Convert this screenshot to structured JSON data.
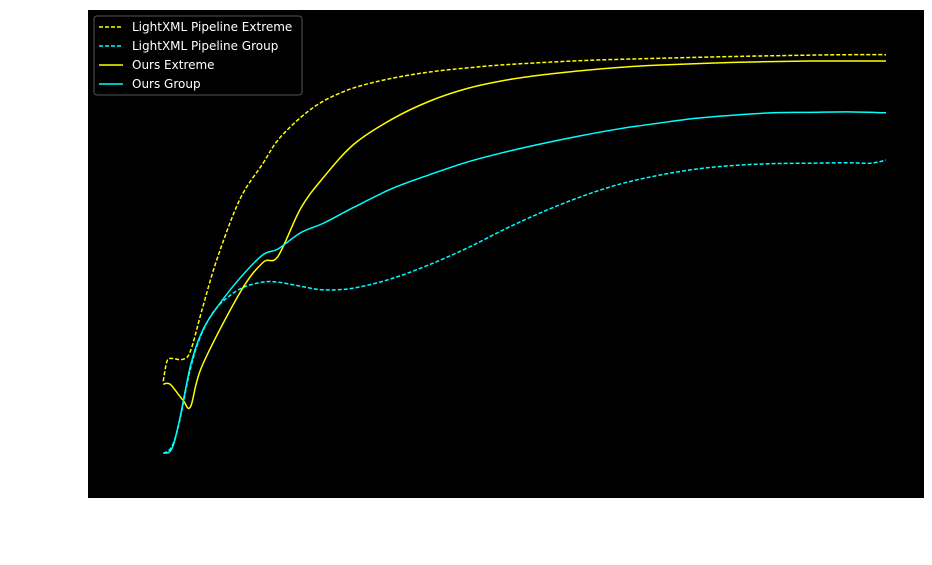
{
  "chart_data": {
    "type": "line",
    "title": "",
    "xlabel": "",
    "ylabel": "",
    "xlim": [
      0,
      1
    ],
    "ylim": [
      0,
      1
    ],
    "grid": false,
    "legend_position": "top-left",
    "background_color": "#000000",
    "series": [
      {
        "name": "LightXML Pipeline Extreme",
        "color": "#ffff00",
        "style": "dashed",
        "points": [
          [
            0.049,
            0.209
          ],
          [
            0.054,
            0.253
          ],
          [
            0.06,
            0.259
          ],
          [
            0.075,
            0.257
          ],
          [
            0.085,
            0.276
          ],
          [
            0.1,
            0.366
          ],
          [
            0.12,
            0.479
          ],
          [
            0.15,
            0.61
          ],
          [
            0.18,
            0.688
          ],
          [
            0.2,
            0.74
          ],
          [
            0.23,
            0.79
          ],
          [
            0.26,
            0.826
          ],
          [
            0.3,
            0.855
          ],
          [
            0.35,
            0.876
          ],
          [
            0.4,
            0.89
          ],
          [
            0.45,
            0.899
          ],
          [
            0.5,
            0.906
          ],
          [
            0.6,
            0.915
          ],
          [
            0.7,
            0.92
          ],
          [
            0.8,
            0.924
          ],
          [
            0.9,
            0.927
          ],
          [
            0.95,
            0.928
          ],
          [
            1.0,
            0.928
          ]
        ]
      },
      {
        "name": "LightXML Pipeline Group",
        "color": "#00ffff",
        "style": "dashed",
        "points": [
          [
            0.049,
            0.05
          ],
          [
            0.06,
            0.064
          ],
          [
            0.07,
            0.117
          ],
          [
            0.085,
            0.238
          ],
          [
            0.1,
            0.315
          ],
          [
            0.12,
            0.372
          ],
          [
            0.15,
            0.412
          ],
          [
            0.18,
            0.427
          ],
          [
            0.2,
            0.427
          ],
          [
            0.23,
            0.418
          ],
          [
            0.26,
            0.41
          ],
          [
            0.3,
            0.414
          ],
          [
            0.35,
            0.435
          ],
          [
            0.4,
            0.466
          ],
          [
            0.45,
            0.503
          ],
          [
            0.5,
            0.545
          ],
          [
            0.55,
            0.583
          ],
          [
            0.6,
            0.616
          ],
          [
            0.65,
            0.643
          ],
          [
            0.7,
            0.662
          ],
          [
            0.75,
            0.676
          ],
          [
            0.8,
            0.684
          ],
          [
            0.85,
            0.688
          ],
          [
            0.9,
            0.689
          ],
          [
            0.95,
            0.69
          ],
          [
            0.98,
            0.689
          ],
          [
            1.0,
            0.696
          ]
        ]
      },
      {
        "name": "Ours Extreme",
        "color": "#ffff00",
        "style": "solid",
        "points": [
          [
            0.049,
            0.202
          ],
          [
            0.054,
            0.204
          ],
          [
            0.06,
            0.199
          ],
          [
            0.075,
            0.167
          ],
          [
            0.085,
            0.153
          ],
          [
            0.1,
            0.242
          ],
          [
            0.15,
            0.404
          ],
          [
            0.18,
            0.47
          ],
          [
            0.2,
            0.484
          ],
          [
            0.23,
            0.59
          ],
          [
            0.26,
            0.658
          ],
          [
            0.3,
            0.731
          ],
          [
            0.35,
            0.786
          ],
          [
            0.4,
            0.826
          ],
          [
            0.45,
            0.854
          ],
          [
            0.5,
            0.872
          ],
          [
            0.55,
            0.884
          ],
          [
            0.6,
            0.893
          ],
          [
            0.65,
            0.9
          ],
          [
            0.7,
            0.905
          ],
          [
            0.8,
            0.911
          ],
          [
            0.9,
            0.914
          ],
          [
            1.0,
            0.914
          ]
        ]
      },
      {
        "name": "Ours Group",
        "color": "#00ffff",
        "style": "solid",
        "points": [
          [
            0.049,
            0.05
          ],
          [
            0.06,
            0.059
          ],
          [
            0.07,
            0.12
          ],
          [
            0.085,
            0.244
          ],
          [
            0.1,
            0.318
          ],
          [
            0.12,
            0.372
          ],
          [
            0.15,
            0.436
          ],
          [
            0.18,
            0.487
          ],
          [
            0.2,
            0.5
          ],
          [
            0.23,
            0.536
          ],
          [
            0.26,
            0.557
          ],
          [
            0.3,
            0.592
          ],
          [
            0.35,
            0.633
          ],
          [
            0.4,
            0.664
          ],
          [
            0.45,
            0.692
          ],
          [
            0.5,
            0.714
          ],
          [
            0.55,
            0.733
          ],
          [
            0.6,
            0.75
          ],
          [
            0.65,
            0.765
          ],
          [
            0.7,
            0.777
          ],
          [
            0.75,
            0.788
          ],
          [
            0.8,
            0.795
          ],
          [
            0.85,
            0.8
          ],
          [
            0.9,
            0.801
          ],
          [
            0.95,
            0.802
          ],
          [
            1.0,
            0.8
          ]
        ]
      }
    ]
  }
}
